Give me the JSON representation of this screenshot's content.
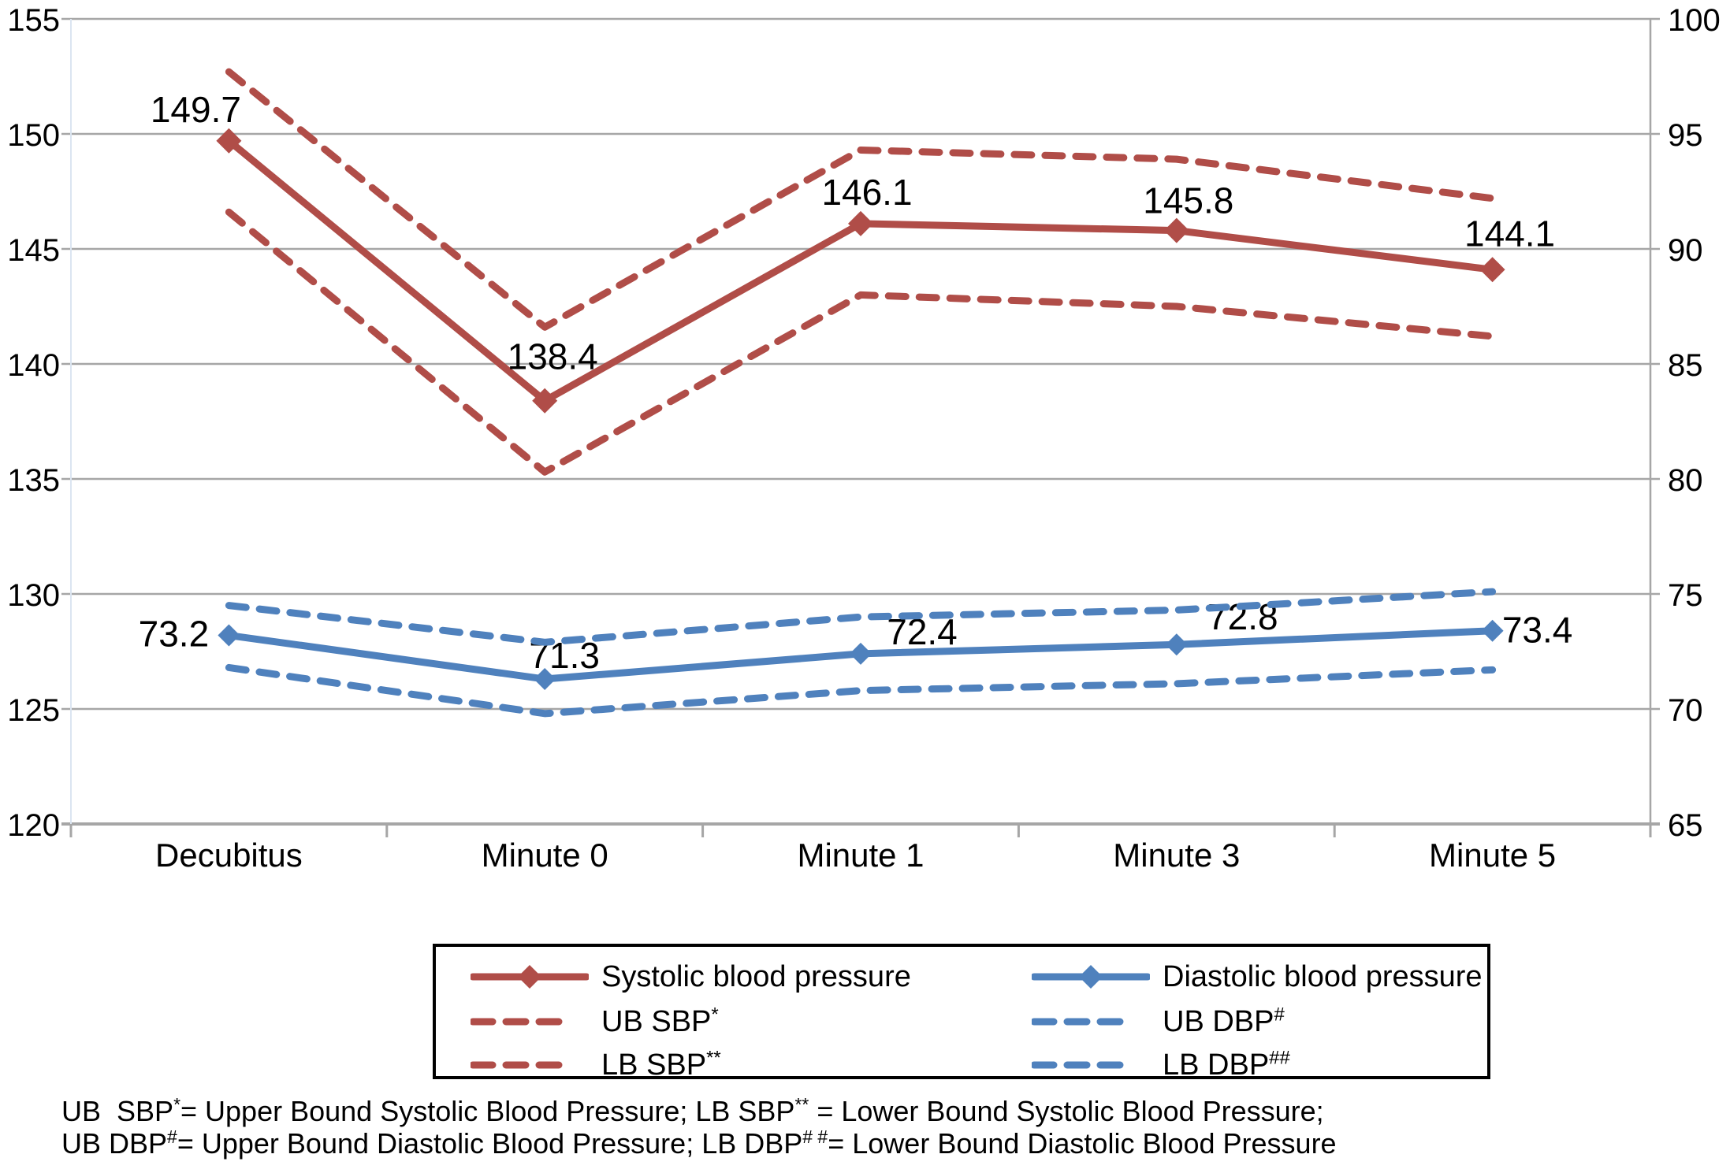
{
  "chart_data": {
    "type": "line",
    "title": "",
    "categories": [
      "Decubitus",
      "Minute 0",
      "Minute 1",
      "Minute 3",
      "Minute 5"
    ],
    "left_axis": {
      "min": 120,
      "max": 155,
      "step": 5,
      "ticks": [
        155,
        150,
        145,
        140,
        135,
        130,
        125,
        120
      ]
    },
    "right_axis": {
      "min": 65,
      "max": 100,
      "step": 5,
      "ticks": [
        100,
        95,
        90,
        85,
        80,
        75,
        70,
        65
      ]
    },
    "right_axis_offset_from_left": -55,
    "grid": true,
    "legend_position": "bottom",
    "series": [
      {
        "name": "Systolic blood pressure",
        "axis": "left",
        "style": "solid",
        "marker": "diamond",
        "show_labels": true,
        "color": "#b04d48",
        "values": [
          149.7,
          138.4,
          146.1,
          145.8,
          144.1
        ]
      },
      {
        "name": "UB SBP*",
        "axis": "left",
        "style": "dashed",
        "marker": "none",
        "show_labels": false,
        "color": "#b04d48",
        "values": [
          152.7,
          141.6,
          149.3,
          148.9,
          147.2
        ]
      },
      {
        "name": "LB SBP**",
        "axis": "left",
        "style": "dashed",
        "marker": "none",
        "show_labels": false,
        "color": "#b04d48",
        "values": [
          146.6,
          135.3,
          143.0,
          142.5,
          141.2
        ]
      },
      {
        "name": "Diastolic blood pressure",
        "axis": "right",
        "style": "solid",
        "marker": "diamond",
        "show_labels": true,
        "color": "#4f81bd",
        "values": [
          73.2,
          71.3,
          72.4,
          72.8,
          73.4
        ]
      },
      {
        "name": "UB DBP#",
        "axis": "right",
        "style": "dashed",
        "marker": "none",
        "show_labels": false,
        "color": "#4f81bd",
        "values": [
          74.5,
          72.9,
          74.0,
          74.3,
          75.1
        ]
      },
      {
        "name": "LB DBP##",
        "axis": "right",
        "style": "dashed",
        "marker": "none",
        "show_labels": false,
        "color": "#4f81bd",
        "values": [
          71.8,
          69.8,
          70.8,
          71.1,
          71.7
        ]
      }
    ]
  },
  "legend": {
    "items": [
      {
        "base": "Systolic blood pressure",
        "sup": "",
        "style": "solid",
        "color": "#b04d48"
      },
      {
        "base": "Diastolic blood pressure",
        "sup": "",
        "style": "solid",
        "color": "#4f81bd"
      },
      {
        "base": "UB SBP",
        "sup": "*",
        "style": "dashed",
        "color": "#b04d48"
      },
      {
        "base": "UB DBP",
        "sup": "#",
        "style": "dashed",
        "color": "#4f81bd"
      },
      {
        "base": "LB SBP",
        "sup": "**",
        "style": "dashed",
        "color": "#b04d48"
      },
      {
        "base": "LB DBP",
        "sup": "##",
        "style": "dashed",
        "color": "#4f81bd"
      }
    ]
  },
  "footnotes": [
    [
      {
        "t": "UB  SBP"
      },
      {
        "t": "*",
        "sup": true
      },
      {
        "t": "= Upper Bound Systolic Blood Pressure; LB SBP"
      },
      {
        "t": "**",
        "sup": true
      },
      {
        "t": " = Lower Bound Systolic Blood Pressure;"
      }
    ],
    [
      {
        "t": "UB DBP"
      },
      {
        "t": "#",
        "sup": true
      },
      {
        "t": "= Upper Bound Diastolic Blood Pressure; LB DBP"
      },
      {
        "t": "# #",
        "sup": true
      },
      {
        "t": "= Lower Bound Diastolic Blood Pressure"
      }
    ]
  ],
  "colors": {
    "sbp": "#b04d48",
    "dbp": "#4f81bd",
    "grid": "#a6a6a6",
    "axis": "#a0a0a0",
    "left_axis_line": "#dbe5f1",
    "text": "#000000",
    "background": "#ffffff",
    "legend_border": "#000000"
  }
}
